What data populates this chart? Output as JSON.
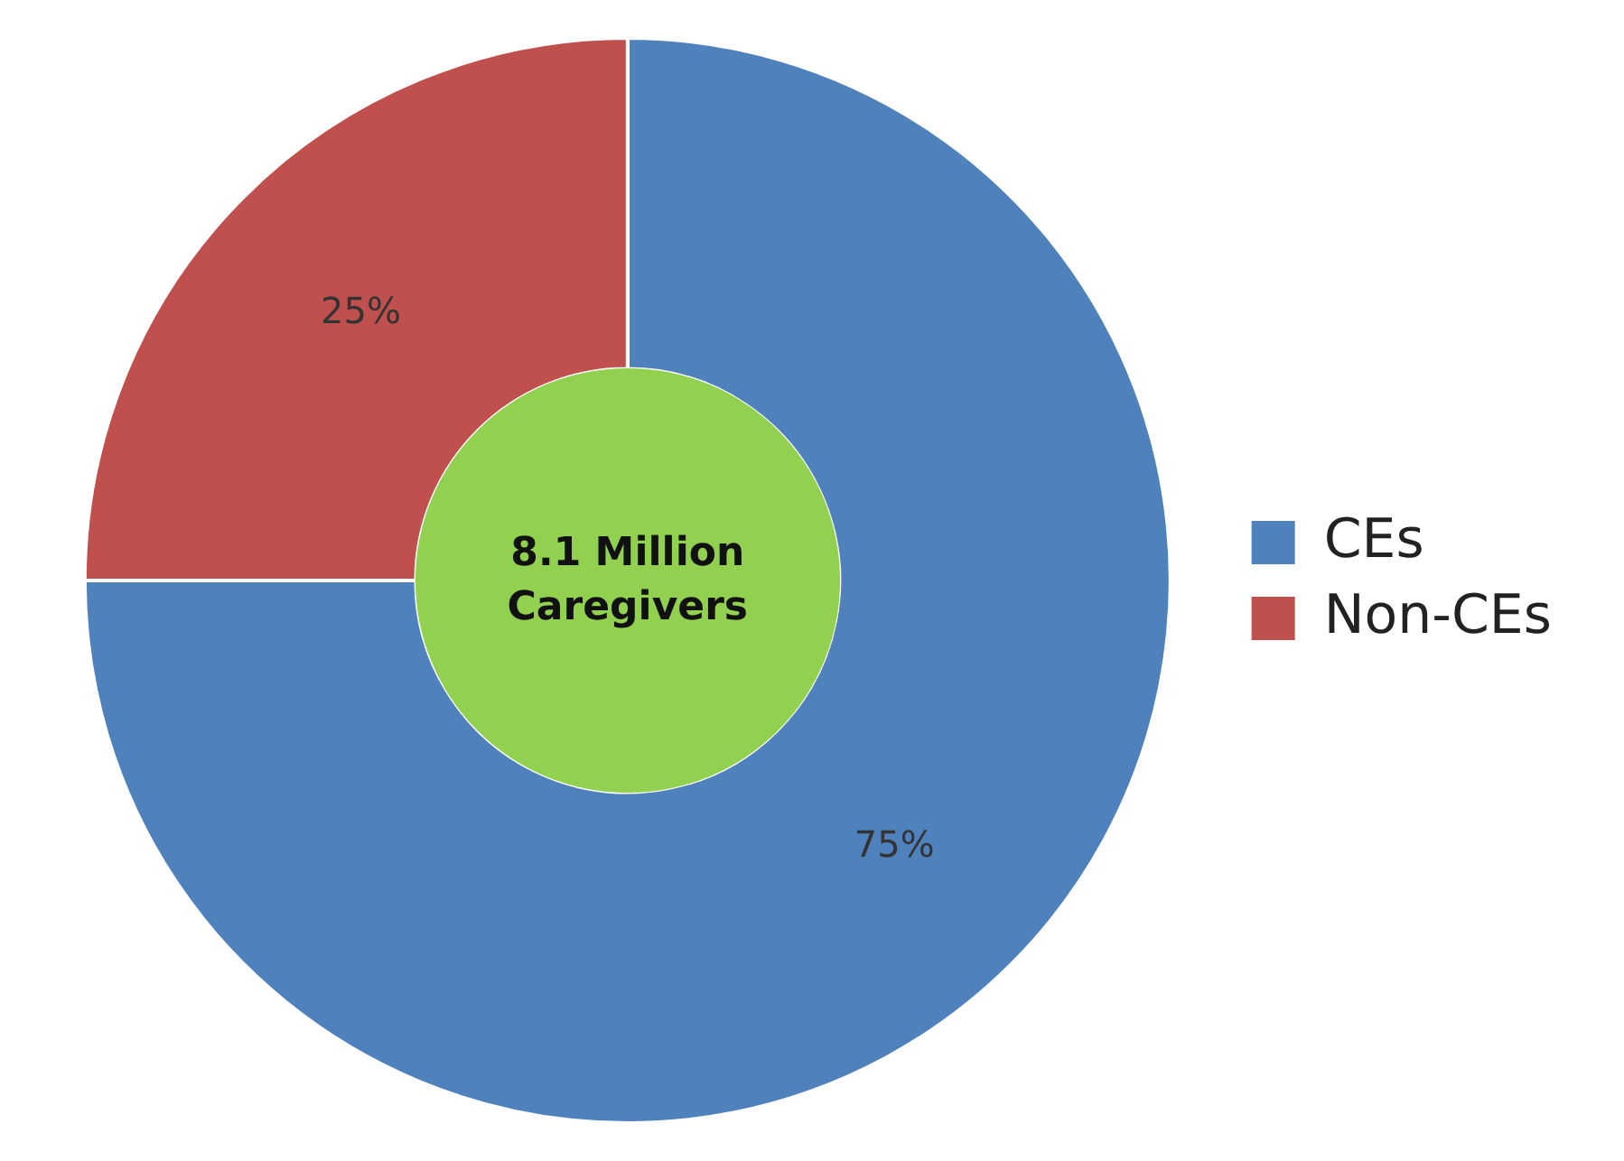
{
  "chart_data": {
    "type": "donut",
    "categories": [
      "CEs",
      "Non-CEs"
    ],
    "values": [
      75,
      25
    ],
    "colors": [
      "#4f81bd",
      "#c0504d"
    ],
    "value_labels": [
      "75%",
      "25%"
    ],
    "legend": "right",
    "annotations": [
      "8.1 Million Caregivers"
    ]
  }
}
